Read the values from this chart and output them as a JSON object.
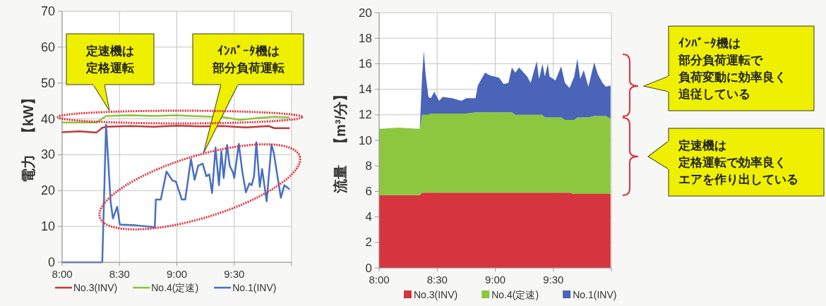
{
  "chart_data": [
    {
      "type": "line",
      "ylabel": "電力　【kW】",
      "xlim": [
        8,
        10
      ],
      "ylim": [
        0,
        70
      ],
      "xticks": [
        {
          "value": 8,
          "label": "8:00"
        },
        {
          "value": 8.5,
          "label": "8:30"
        },
        {
          "value": 9,
          "label": "9:00"
        },
        {
          "value": 9.5,
          "label": "9:30"
        },
        {
          "value": 10,
          "label": null
        }
      ],
      "yticks": [
        0,
        10,
        20,
        30,
        40,
        50,
        60,
        70
      ],
      "grid": true,
      "legend": "bottom",
      "annotations": [
        "定速機は定格運転",
        "ｲﾝﾊﾞｰﾀ機は部分負荷運転"
      ],
      "series": [
        {
          "name": "No.3(INV)",
          "color": "#c0393b",
          "x": [
            8,
            8.15,
            8.3,
            8.35,
            8.383,
            8.6,
            8.8,
            9,
            9.2,
            9.4,
            9.6,
            9.8,
            9.85,
            9.978
          ],
          "values": [
            36.3,
            36.5,
            36.2,
            37.5,
            37.8,
            38,
            37.8,
            38.1,
            37.9,
            38,
            37.6,
            38,
            37.4,
            37.4
          ]
        },
        {
          "name": "No.4(定速)",
          "color": "#8cc43c",
          "x": [
            8,
            8.3,
            8.383,
            8.6,
            8.8,
            9,
            9.2,
            9.4,
            9.55,
            9.7,
            9.85,
            9.978
          ],
          "values": [
            39,
            39,
            40.8,
            41,
            40.8,
            41,
            40.7,
            40.5,
            39.7,
            40.2,
            40.6,
            40.4
          ]
        },
        {
          "name": "No.1(INV)",
          "color": "#4a6fc0",
          "x": [
            8,
            8.35,
            8.383,
            8.423,
            8.443,
            8.48,
            8.503,
            8.647,
            8.808,
            8.817,
            8.86,
            8.91,
            8.962,
            8.992,
            9.043,
            9.073,
            9.123,
            9.155,
            9.185,
            9.225,
            9.257,
            9.283,
            9.307,
            9.337,
            9.367,
            9.388,
            9.408,
            9.438,
            9.46,
            9.49,
            9.5,
            9.54,
            9.572,
            9.602,
            9.632,
            9.652,
            9.673,
            9.693,
            9.723,
            9.743,
            9.783,
            9.825,
            9.845,
            9.877,
            9.907,
            9.937,
            9.978
          ],
          "values": [
            0,
            0,
            38.4,
            16.8,
            12.2,
            15.5,
            10.5,
            10.3,
            9.8,
            17.5,
            17.5,
            25.3,
            22.8,
            22.5,
            17.5,
            17.5,
            28.8,
            23,
            26.9,
            27.5,
            24,
            24.5,
            19.3,
            32,
            21.5,
            31,
            23.5,
            32.7,
            27,
            25,
            23.5,
            33,
            25,
            19.5,
            22,
            21.5,
            24,
            33.5,
            21,
            26,
            17,
            32.8,
            30.5,
            24,
            18,
            21.5,
            20.5
          ]
        }
      ]
    },
    {
      "type": "area",
      "stacked": true,
      "ylabel": "流量　【m³/分】",
      "xlim": [
        8,
        10
      ],
      "ylim": [
        0,
        20
      ],
      "xticks": [
        {
          "value": 8,
          "label": "8:00"
        },
        {
          "value": 8.5,
          "label": "8:30"
        },
        {
          "value": 9,
          "label": "9:00"
        },
        {
          "value": 9.5,
          "label": "9:30"
        },
        {
          "value": 10,
          "label": null
        }
      ],
      "yticks": [
        0,
        2,
        4,
        6,
        8,
        10,
        12,
        14,
        16,
        18,
        20
      ],
      "grid": true,
      "legend": "bottom",
      "annotations": [
        "ｲﾝﾊﾞｰﾀ機は部分負荷運転で負荷変動に効率良く追従している",
        "定速機は定格運転で効率良くエアを作り出している"
      ],
      "x": [
        8,
        8.167,
        8.35,
        8.37,
        8.385,
        8.4,
        8.425,
        8.445,
        8.475,
        8.517,
        8.547,
        8.628,
        8.708,
        8.75,
        8.83,
        8.85,
        8.912,
        8.952,
        9.033,
        9.073,
        9.113,
        9.143,
        9.173,
        9.205,
        9.235,
        9.275,
        9.305,
        9.357,
        9.377,
        9.407,
        9.427,
        9.453,
        9.467,
        9.518,
        9.568,
        9.6,
        9.64,
        9.68,
        9.707,
        9.732,
        9.762,
        9.802,
        9.852,
        9.883,
        9.923,
        9.953,
        9.993
      ],
      "series": [
        {
          "name": "No.3(INV)",
          "color": "#d6343f",
          "values": [
            5.7,
            5.7,
            5.7,
            5.9,
            5.9,
            5.9,
            5.9,
            5.9,
            5.9,
            5.9,
            5.9,
            5.9,
            5.9,
            5.9,
            5.9,
            5.9,
            5.9,
            5.9,
            5.9,
            5.9,
            5.9,
            5.9,
            5.9,
            5.9,
            5.9,
            5.9,
            5.9,
            5.9,
            5.9,
            5.9,
            5.9,
            5.9,
            5.9,
            5.9,
            5.9,
            5.9,
            5.9,
            5.8,
            5.8,
            5.8,
            5.8,
            5.8,
            5.8,
            5.8,
            5.8,
            5.8,
            5.8
          ]
        },
        {
          "name": "No.4(定速)",
          "color": "#8dc63f",
          "values": [
            5.2,
            5.3,
            5.2,
            6.1,
            6.1,
            6.1,
            6.1,
            6.2,
            6.2,
            6.2,
            6.2,
            6.2,
            6.2,
            6.2,
            6.3,
            6.3,
            6.3,
            6.3,
            6.3,
            6.3,
            6.3,
            6.3,
            6.1,
            6.1,
            6.1,
            6.1,
            6.1,
            6.1,
            6.1,
            6.1,
            5.9,
            5.9,
            5.9,
            5.9,
            5.9,
            5.7,
            5.7,
            5.8,
            6,
            6,
            6,
            6,
            6.1,
            6.1,
            6.1,
            6.1,
            5.9
          ]
        },
        {
          "name": "No.1(INV)",
          "color": "#4a64b8",
          "values": [
            0,
            0,
            0,
            3,
            5,
            3.2,
            1.4,
            1.2,
            1.7,
            1,
            1.3,
            1.2,
            1,
            1.2,
            1.1,
            2.1,
            3.1,
            2.9,
            2.7,
            2.2,
            2.3,
            3.5,
            3.3,
            3.7,
            3.4,
            3,
            2.5,
            4.2,
            2.8,
            4,
            3.2,
            4.2,
            3.2,
            2.9,
            4,
            2.9,
            2.5,
            3.4,
            4.6,
            3,
            3.7,
            2.4,
            4.2,
            3.3,
            2.6,
            2.3,
            2.6
          ]
        }
      ]
    }
  ]
}
